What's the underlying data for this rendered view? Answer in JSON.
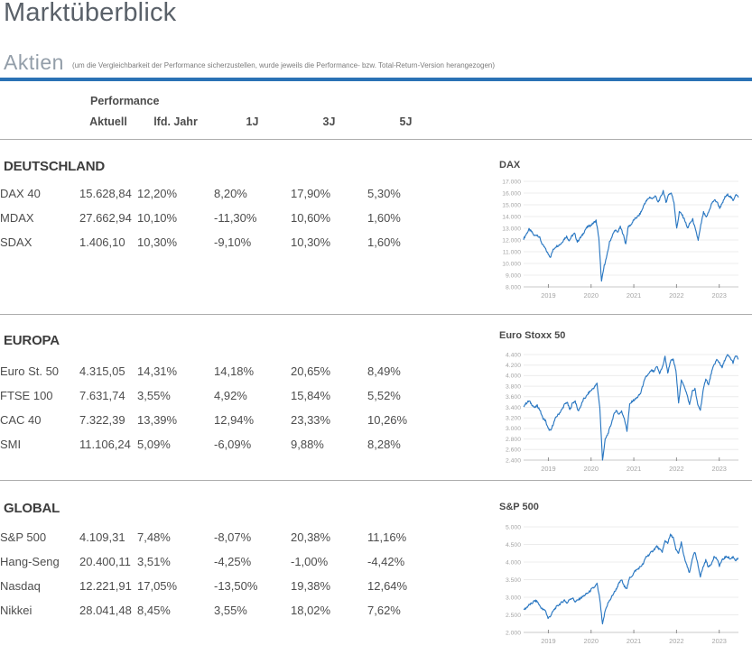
{
  "page": {
    "title": "Marktüberblick",
    "section_label": "Aktien",
    "section_note": "(um die Vergleichbarkeit der Performance sicherzustellen, wurde jeweils die Performance- bzw. Total-Return-Version herangezogen)"
  },
  "colors": {
    "accent_blue": "#2a72b5",
    "chart_line": "#2b78c2",
    "grid_line": "#ececec",
    "axis_line": "#c9c9c9",
    "tick_text": "#a5a5a5",
    "text_dark": "#4a4a4a"
  },
  "table": {
    "group_header": "Performance",
    "columns": [
      "Aktuell",
      "lfd. Jahr",
      "1J",
      "3J",
      "5J"
    ],
    "sections": [
      {
        "title": "DEUTSCHLAND",
        "rows": [
          {
            "name": "DAX 40",
            "values": [
              "15.628,84",
              "12,20%",
              "8,20%",
              "17,90%",
              "5,30%"
            ]
          },
          {
            "name": "MDAX",
            "values": [
              "27.662,94",
              "10,10%",
              "-11,30%",
              "10,60%",
              "1,60%"
            ]
          },
          {
            "name": "SDAX",
            "values": [
              "1.406,10",
              "10,30%",
              "-9,10%",
              "10,30%",
              "1,60%"
            ]
          }
        ]
      },
      {
        "title": "EUROPA",
        "rows": [
          {
            "name": "Euro St. 50",
            "values": [
              "4.315,05",
              "14,31%",
              "14,18%",
              "20,65%",
              "8,49%"
            ]
          },
          {
            "name": "FTSE 100",
            "values": [
              "7.631,74",
              "3,55%",
              "4,92%",
              "15,84%",
              "5,52%"
            ]
          },
          {
            "name": "CAC 40",
            "values": [
              "7.322,39",
              "13,39%",
              "12,94%",
              "23,33%",
              "10,26%"
            ]
          },
          {
            "name": "SMI",
            "values": [
              "11.106,24",
              "5,09%",
              "-6,09%",
              "9,88%",
              "8,28%"
            ]
          }
        ]
      },
      {
        "title": "GLOBAL",
        "rows": [
          {
            "name": "S&P 500",
            "values": [
              "4.109,31",
              "7,48%",
              "-8,07%",
              "20,38%",
              "11,16%"
            ]
          },
          {
            "name": "Hang-Seng",
            "values": [
              "20.400,11",
              "3,51%",
              "-4,25%",
              "-1,00%",
              "-4,42%"
            ]
          },
          {
            "name": "Nasdaq",
            "values": [
              "12.221,91",
              "17,05%",
              "-13,50%",
              "19,38%",
              "12,64%"
            ]
          },
          {
            "name": "Nikkei",
            "values": [
              "28.041,48",
              "8,45%",
              "3,55%",
              "18,02%",
              "7,62%"
            ]
          }
        ]
      }
    ]
  },
  "chart_data": [
    {
      "type": "line",
      "title": "DAX",
      "x_ticks": [
        "2019",
        "2020",
        "2021",
        "2022",
        "2023"
      ],
      "x_range": [
        2018.42,
        2023.45
      ],
      "ylim": [
        8000,
        17000
      ],
      "y_tick_values": [
        17000,
        16000,
        15000,
        14000,
        13000,
        12000,
        11000,
        10000,
        9000,
        8000
      ],
      "y_tick_labels": [
        "17.000",
        "16.000",
        "15.000",
        "14.000",
        "13.000",
        "12.000",
        "11.000",
        "10.000",
        "9.000",
        "8.000"
      ],
      "values": [
        12100,
        12500,
        12900,
        12700,
        12350,
        12450,
        12200,
        11600,
        11300,
        10850,
        10550,
        11150,
        11450,
        11550,
        11700,
        12050,
        12300,
        11950,
        12350,
        12550,
        11850,
        12150,
        12450,
        12900,
        13150,
        13250,
        13450,
        13650,
        12200,
        8450,
        9800,
        10600,
        11800,
        12350,
        12850,
        12650,
        13100,
        12550,
        11650,
        13150,
        13300,
        13700,
        13900,
        14100,
        14500,
        15100,
        15400,
        15650,
        15500,
        15800,
        15200,
        15600,
        16200,
        15200,
        15900,
        16000,
        15200,
        12950,
        14400,
        14150,
        13700,
        13000,
        13450,
        13750,
        12850,
        12000,
        13250,
        14350,
        13900,
        14450,
        15100,
        15400,
        15250,
        14750,
        15100,
        15650,
        15850,
        15700,
        15350,
        15900,
        15628
      ]
    },
    {
      "type": "line",
      "title": "Euro Stoxx 50",
      "x_ticks": [
        "2019",
        "2020",
        "2021",
        "2022",
        "2023"
      ],
      "x_range": [
        2018.42,
        2023.45
      ],
      "ylim": [
        2400,
        4400
      ],
      "y_tick_values": [
        4400,
        4200,
        4000,
        3800,
        3600,
        3400,
        3200,
        3000,
        2800,
        2600,
        2400
      ],
      "y_tick_labels": [
        "4.400",
        "4.200",
        "4.000",
        "3.800",
        "3.600",
        "3.400",
        "3.200",
        "3.000",
        "2.800",
        "2.600",
        "2.400"
      ],
      "values": [
        3425,
        3480,
        3520,
        3460,
        3390,
        3430,
        3350,
        3200,
        3150,
        3000,
        2950,
        3100,
        3220,
        3280,
        3350,
        3450,
        3500,
        3350,
        3480,
        3520,
        3330,
        3420,
        3550,
        3600,
        3680,
        3730,
        3780,
        3850,
        3400,
        2400,
        2790,
        2900,
        3050,
        3230,
        3350,
        3270,
        3320,
        3200,
        2950,
        3450,
        3520,
        3550,
        3600,
        3660,
        3850,
        3980,
        4030,
        4100,
        4070,
        4180,
        4050,
        4150,
        4360,
        4050,
        4280,
        4300,
        4100,
        3500,
        3900,
        3820,
        3650,
        3450,
        3700,
        3750,
        3450,
        3350,
        3700,
        3950,
        3820,
        4050,
        4200,
        4300,
        4250,
        4150,
        4300,
        4390,
        4330,
        4250,
        4380,
        4315
      ]
    },
    {
      "type": "line",
      "title": "S&P 500",
      "x_ticks": [
        "2019",
        "2020",
        "2021",
        "2022",
        "2023"
      ],
      "x_range": [
        2018.42,
        2023.45
      ],
      "ylim": [
        2000,
        5000
      ],
      "y_tick_values": [
        5000,
        4500,
        4000,
        3500,
        3000,
        2500,
        2000
      ],
      "y_tick_labels": [
        "5.000",
        "4.500",
        "4.000",
        "3.500",
        "3.000",
        "2.500",
        "2.000"
      ],
      "values": [
        2640,
        2700,
        2780,
        2820,
        2900,
        2880,
        2750,
        2650,
        2630,
        2400,
        2480,
        2620,
        2720,
        2790,
        2850,
        2920,
        2830,
        2950,
        2980,
        2870,
        2920,
        2980,
        3030,
        3090,
        3140,
        3230,
        3280,
        3380,
        2950,
        2220,
        2620,
        2830,
        2950,
        3100,
        3220,
        3380,
        3500,
        3300,
        3270,
        3550,
        3620,
        3750,
        3800,
        3870,
        3950,
        4150,
        4200,
        4280,
        4360,
        4450,
        4350,
        4300,
        4600,
        4550,
        4770,
        4700,
        4350,
        4250,
        4550,
        4150,
        3900,
        3680,
        4100,
        4280,
        3950,
        3600,
        3850,
        4050,
        3850,
        3950,
        4150,
        4100,
        3900,
        4050,
        4130,
        4160,
        4080,
        4150,
        4050,
        4109
      ]
    }
  ]
}
